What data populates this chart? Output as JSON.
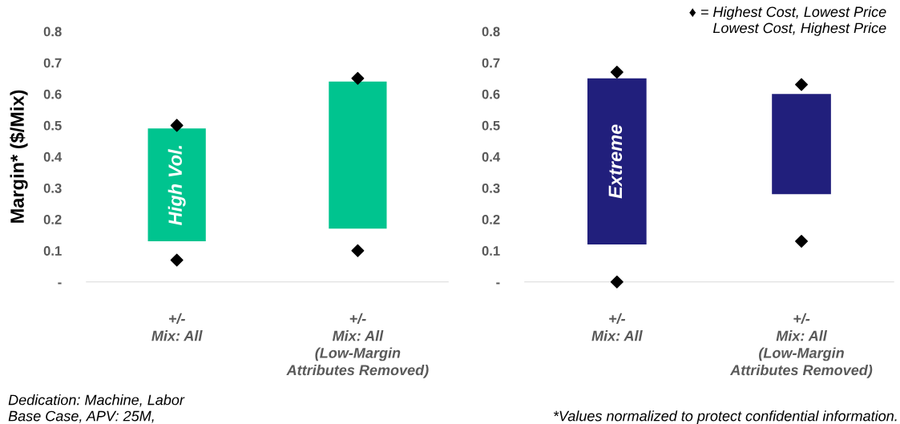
{
  "chart_data": [
    {
      "type": "bar",
      "ylabel": "Margin* ($/Mix)",
      "categories": [
        "+/-\nMix: All",
        "+/-\nMix: All\n(Low-Margin\nAttributes Removed)"
      ],
      "ylim": [
        0,
        0.8
      ],
      "yticks": [
        {
          "value": 0,
          "label": "-"
        },
        0.1,
        0.2,
        0.3,
        0.4,
        0.5,
        0.6,
        0.7,
        0.8
      ],
      "grid": false,
      "legend": false,
      "series": [
        {
          "color": "#00c48f",
          "base": [
            0.13,
            0.17
          ],
          "values": [
            0.36,
            0.47
          ]
        },
        {
          "type": "scatter",
          "color": "#000000",
          "marker": "diamond",
          "values": [
            0.5,
            0.65
          ]
        },
        {
          "type": "scatter",
          "color": "#000000",
          "marker": "diamond",
          "values": [
            0.07,
            0.1
          ]
        }
      ],
      "annotations": [
        "High Vol.",
        "Dedication: Machine, Labor\nBase Case, APV: 25M,"
      ]
    },
    {
      "type": "bar",
      "categories": [
        "+/-\nMix: All",
        "+/-\nMix: All\n(Low-Margin\nAttributes Removed)"
      ],
      "ylim": [
        0,
        0.8
      ],
      "yticks": [
        {
          "value": 0,
          "label": "-"
        },
        0.1,
        0.2,
        0.3,
        0.4,
        0.5,
        0.6,
        0.7,
        0.8
      ],
      "grid": false,
      "legend": false,
      "series": [
        {
          "color": "#211f7c",
          "base": [
            0.12,
            0.28
          ],
          "values": [
            0.53,
            0.32
          ]
        },
        {
          "type": "scatter",
          "color": "#000000",
          "marker": "diamond",
          "values": [
            0.67,
            0.63
          ]
        },
        {
          "type": "scatter",
          "color": "#000000",
          "marker": "diamond",
          "values": [
            0.0,
            0.13
          ]
        }
      ],
      "annotations": [
        "Extreme",
        "♦ = Highest Cost, Lowest Price\nLowest Cost, Highest Price",
        "*Values normalized to protect confidential information."
      ]
    }
  ]
}
